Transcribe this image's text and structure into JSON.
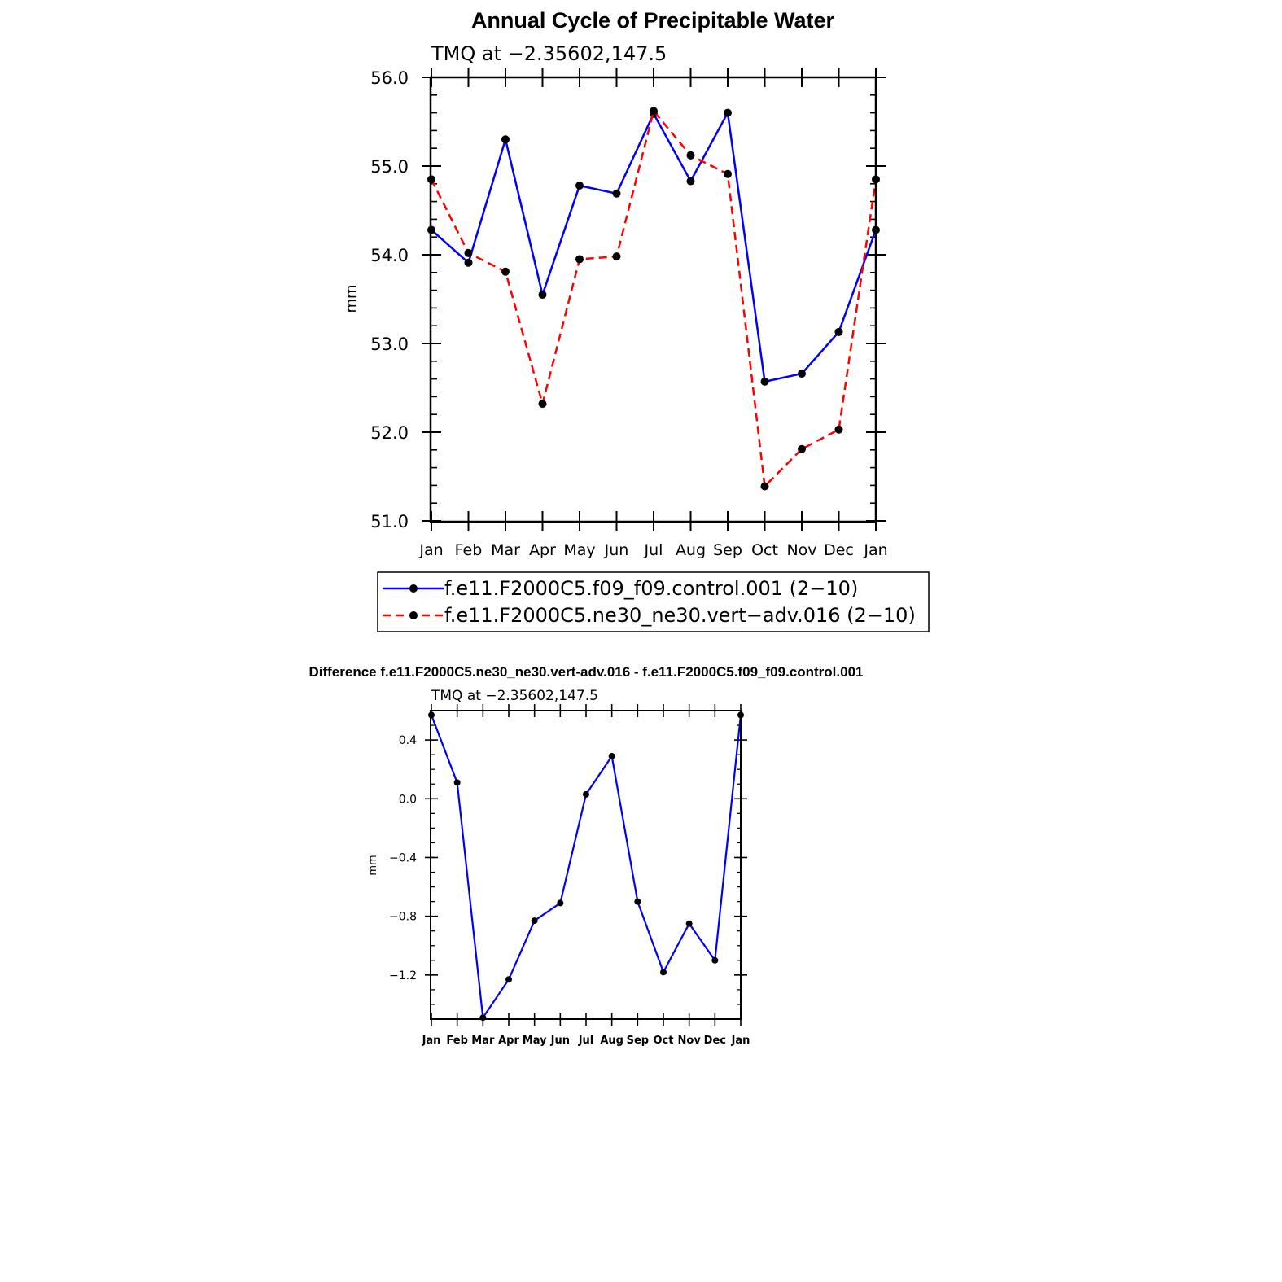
{
  "chart_data": [
    {
      "type": "line",
      "title": "Annual Cycle of Precipitable Water",
      "subtitle": "TMQ at −2.35602,147.5",
      "xlabel": "",
      "ylabel": "mm",
      "categories": [
        "Jan",
        "Feb",
        "Mar",
        "Apr",
        "May",
        "Jun",
        "Jul",
        "Aug",
        "Sep",
        "Oct",
        "Nov",
        "Dec",
        "Jan"
      ],
      "ylim": [
        51.0,
        56.0
      ],
      "yticks": [
        "51.0",
        "52.0",
        "53.0",
        "54.0",
        "55.0",
        "56.0"
      ],
      "series": [
        {
          "name": "f.e11.F2000C5.f09_f09.control.001 (2−10)",
          "color": "#0000ff",
          "dash": "solid",
          "values": [
            54.28,
            53.91,
            55.3,
            53.55,
            54.78,
            54.69,
            55.59,
            54.83,
            55.6,
            52.57,
            52.66,
            53.13,
            54.28
          ]
        },
        {
          "name": "f.e11.F2000C5.ne30_ne30.vert−adv.016 (2−10)",
          "color": "#ff0000",
          "dash": "dashed",
          "values": [
            54.85,
            54.02,
            53.81,
            52.32,
            53.95,
            53.98,
            55.62,
            55.12,
            54.91,
            51.39,
            51.81,
            52.03,
            54.85
          ]
        }
      ],
      "legend_position": "bottom"
    },
    {
      "type": "line",
      "title": "Difference f.e11.F2000C5.ne30_ne30.vert-adv.016 - f.e11.F2000C5.f09_f09.control.001",
      "subtitle": "TMQ at −2.35602,147.5",
      "xlabel": "",
      "ylabel": "mm",
      "categories": [
        "Jan",
        "Feb",
        "Mar",
        "Apr",
        "May",
        "Jun",
        "Jul",
        "Aug",
        "Sep",
        "Oct",
        "Nov",
        "Dec",
        "Jan"
      ],
      "ylim": [
        -1.5,
        0.6
      ],
      "yticks": [
        "−1.2",
        "−0.8",
        "−0.4",
        "0.0",
        "0.4"
      ],
      "ytick_values": [
        -1.2,
        -0.8,
        -0.4,
        0.0,
        0.4
      ],
      "series": [
        {
          "name": "Difference",
          "color": "#0000ff",
          "dash": "solid",
          "values": [
            0.57,
            0.11,
            -1.49,
            -1.23,
            -0.83,
            -0.71,
            0.03,
            0.29,
            -0.7,
            -1.18,
            -0.85,
            -1.1,
            0.57
          ]
        }
      ]
    }
  ]
}
